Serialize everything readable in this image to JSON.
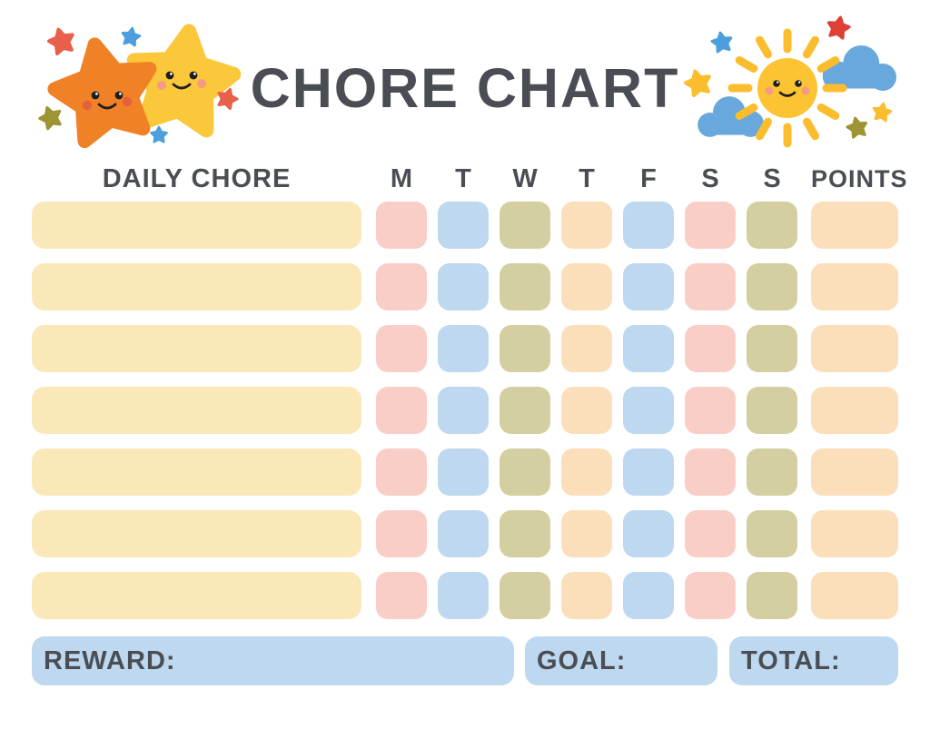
{
  "title": "CHORE CHART",
  "table": {
    "chore_header": "DAILY CHORE",
    "day_headers": [
      "M",
      "T",
      "W",
      "T",
      "F",
      "S",
      "S"
    ],
    "points_header": "POINTS",
    "rows": [
      {
        "chore": "",
        "days": [
          "pink",
          "blue",
          "olive",
          "peach",
          "blue",
          "pink",
          "olive"
        ],
        "points": ""
      },
      {
        "chore": "",
        "days": [
          "pink",
          "blue",
          "olive",
          "peach",
          "blue",
          "pink",
          "olive"
        ],
        "points": ""
      },
      {
        "chore": "",
        "days": [
          "pink",
          "blue",
          "olive",
          "peach",
          "blue",
          "pink",
          "olive"
        ],
        "points": ""
      },
      {
        "chore": "",
        "days": [
          "pink",
          "blue",
          "olive",
          "peach",
          "blue",
          "pink",
          "olive"
        ],
        "points": ""
      },
      {
        "chore": "",
        "days": [
          "pink",
          "blue",
          "olive",
          "peach",
          "blue",
          "pink",
          "olive"
        ],
        "points": ""
      },
      {
        "chore": "",
        "days": [
          "pink",
          "blue",
          "olive",
          "peach",
          "blue",
          "pink",
          "olive"
        ],
        "points": ""
      },
      {
        "chore": "",
        "days": [
          "pink",
          "blue",
          "olive",
          "peach",
          "blue",
          "pink",
          "olive"
        ],
        "points": ""
      }
    ]
  },
  "footer": {
    "reward_label": "REWARD:",
    "goal_label": "GOAL:",
    "total_label": "TOTAL:"
  },
  "decorations": {
    "left": "two-smiling-stars",
    "right": "smiling-sun-with-clouds"
  },
  "colors": {
    "text": "#4A4E54",
    "cream": "#FAE8B9",
    "pink": "#F8CEC7",
    "blue": "#BDD8EF",
    "olive": "#D3CFA0",
    "peach": "#FBDFBA",
    "footer-blue": "#BDD8EF",
    "star-orange": "#F08127",
    "star-yellow": "#FBC73B",
    "star-coral": "#E8604C",
    "star-blue": "#4C9FDC",
    "star-olive": "#9D9434",
    "star-red": "#DE4038",
    "sun-ray": "#FBBD2E",
    "sun-body": "#FCC433",
    "cloud-blue": "#68A8DC",
    "cheek-orange": "#E5603F",
    "cheek-soft": "#F29C84",
    "face-dark": "#1E1E1E"
  }
}
